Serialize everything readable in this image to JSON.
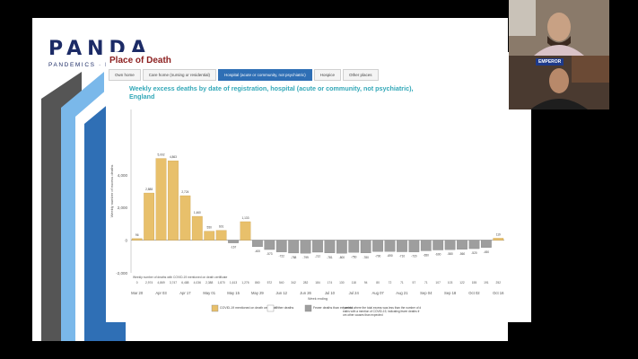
{
  "brand": {
    "name": "PANDA",
    "tagline": "PANDEMICS · DATA & ANALYTICS"
  },
  "panel": {
    "title": "Place of Death",
    "tabs": [
      {
        "label": "Own home",
        "active": false
      },
      {
        "label": "Care home (nursing or residential)",
        "active": false
      },
      {
        "label": "Hospital (acute or community, not psychiatric)",
        "active": true
      },
      {
        "label": "Hospice",
        "active": false
      },
      {
        "label": "Other places",
        "active": false
      }
    ]
  },
  "chart_data": {
    "type": "bar",
    "title": "Weekly excess deaths by date of registration, hospital (acute or community, not psychiatric), England",
    "ylabel": "Weekly number of excess deaths",
    "xlabel": "Week ending",
    "ylim": [
      -2000,
      8000
    ],
    "yticks": [
      "4,000",
      "2,000",
      "0",
      "-2,000"
    ],
    "x_ticks": [
      "Mar 20",
      "Apr 03",
      "Apr 17",
      "May 01",
      "May 15",
      "May 29",
      "Jun 12",
      "Jun 26",
      "Jul 10",
      "Jul 24",
      "Aug 07",
      "Aug 21",
      "Sep 04",
      "Sep 18",
      "Oct 02",
      "Oct 16"
    ],
    "covid_values": [
      0,
      2974,
      4869,
      3747,
      6488,
      4036,
      2388,
      1870,
      1613,
      1276,
      860,
      572,
      540,
      342,
      282,
      184,
      174,
      130,
      118,
      94,
      80,
      72,
      71,
      57,
      71,
      107,
      103,
      122,
      155,
      191,
      252
    ],
    "excess_values": [
      96,
      2888,
      5002,
      4863,
      2724,
      1460,
      550,
      601,
      -167,
      1133,
      -400,
      -573,
      -722,
      -788,
      -799,
      -737,
      -781,
      -800,
      -750,
      -780,
      -700,
      -690,
      -710,
      -720,
      -650,
      -600,
      -580,
      -560,
      -520,
      -450,
      119
    ],
    "covid_row_label": "Weekly number of deaths with COVID-19 mentioned on death certificate",
    "legend": [
      {
        "label": "COVID-19 mentioned on death certificate",
        "color": "#e8c06b"
      },
      {
        "label": "Other deaths",
        "color": "#ffffff"
      },
      {
        "label": "Fewer deaths than expected",
        "color": "#9e9e9e"
      },
      {
        "label": "* weeks where the total excess was less than the number of deaths with a mention of COVID-19, indicating fewer deaths from other causes than expected",
        "color": ""
      }
    ],
    "colors": {
      "covid": "#e8c06b",
      "fewer": "#9e9e9e",
      "axis": "#888888"
    }
  },
  "video": {
    "top_participant_badge": "",
    "bottom_participant_badge": "EMPEROR"
  }
}
